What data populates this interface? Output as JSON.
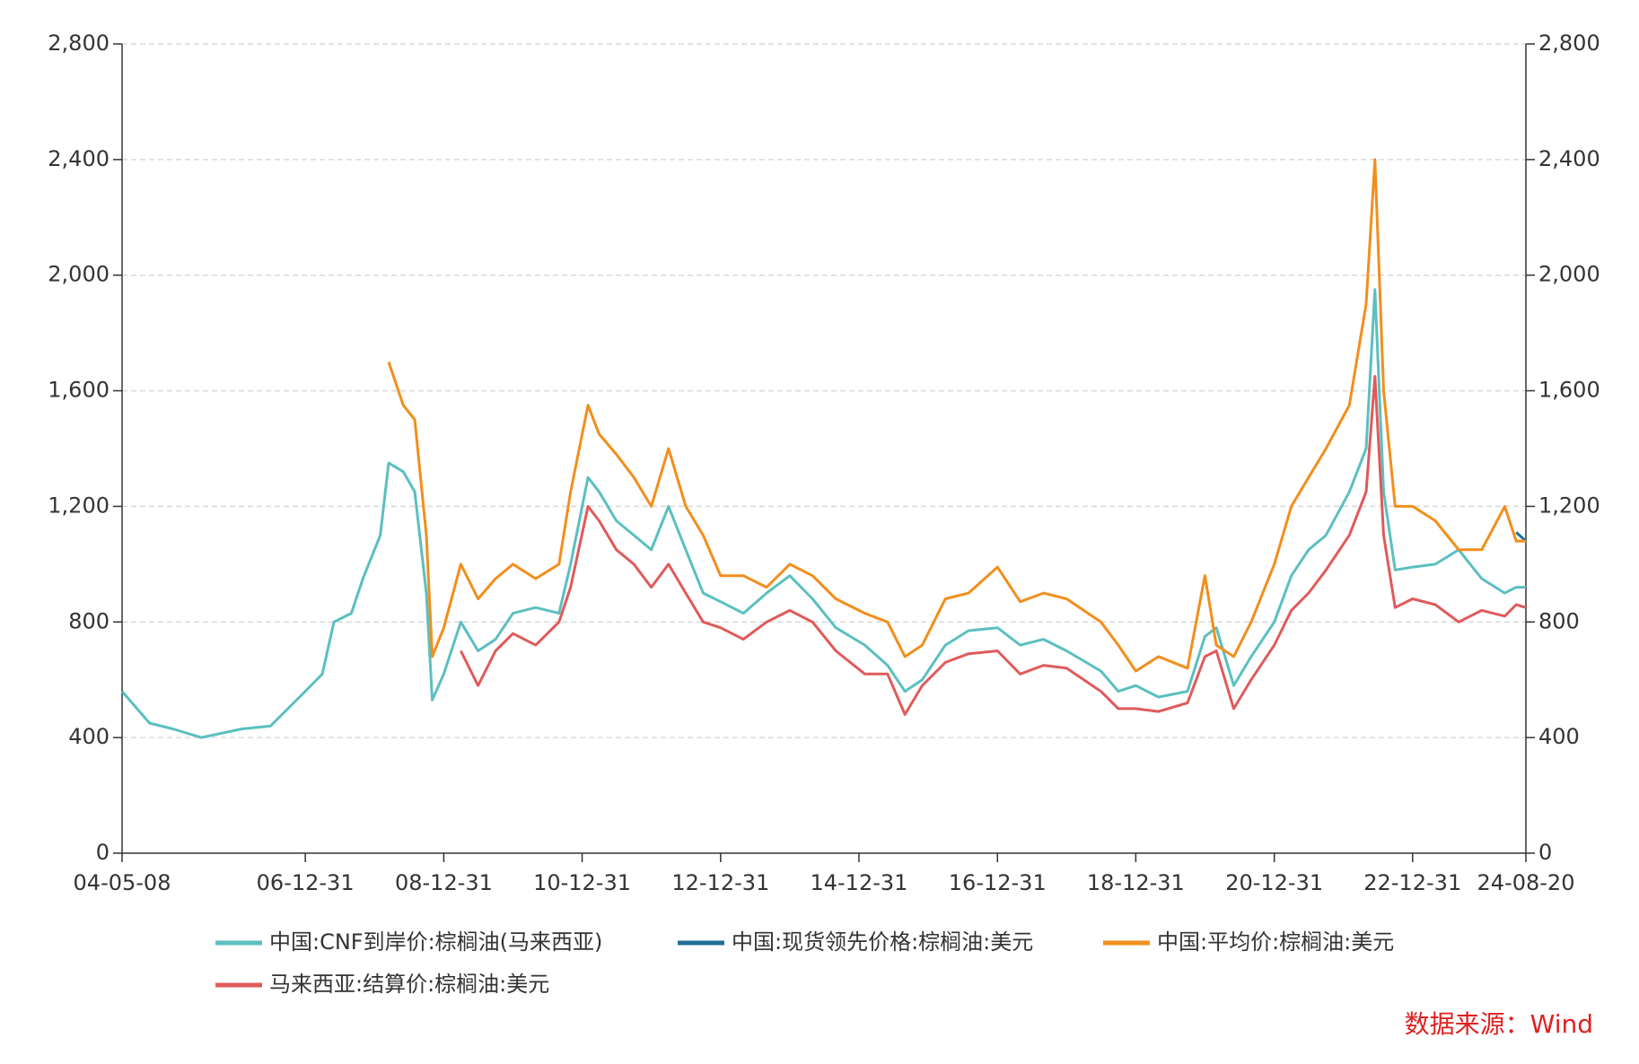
{
  "chart_data": {
    "type": "line",
    "x": [
      "04-05-08",
      "04-09-30",
      "05-01-31",
      "05-06-30",
      "06-01-31",
      "06-06-30",
      "06-09-30",
      "06-12-31",
      "07-03-31",
      "07-05-31",
      "07-08-31",
      "07-10-31",
      "08-01-31",
      "08-03-15",
      "08-05-31",
      "08-07-31",
      "08-09-30",
      "08-10-31",
      "08-12-31",
      "09-03-31",
      "09-06-30",
      "09-09-30",
      "09-12-31",
      "10-04-30",
      "10-08-31",
      "10-10-31",
      "11-01-31",
      "11-03-31",
      "11-06-30",
      "11-09-30",
      "11-12-31",
      "12-03-31",
      "12-06-30",
      "12-09-30",
      "12-12-31",
      "13-04-30",
      "13-08-31",
      "13-12-31",
      "14-04-30",
      "14-08-31",
      "15-01-31",
      "15-05-31",
      "15-08-31",
      "15-11-30",
      "16-03-31",
      "16-07-31",
      "16-12-31",
      "17-04-30",
      "17-08-31",
      "17-12-31",
      "18-06-30",
      "18-09-30",
      "18-12-31",
      "19-04-30",
      "19-09-30",
      "19-12-31",
      "20-02-29",
      "20-05-31",
      "20-08-31",
      "20-12-31",
      "21-03-31",
      "21-06-30",
      "21-09-30",
      "22-01-31",
      "22-04-30",
      "22-06-15",
      "22-07-31",
      "22-09-30",
      "22-12-31",
      "23-04-30",
      "23-08-31",
      "23-12-31",
      "24-04-30",
      "24-06-30",
      "24-08-20"
    ],
    "series": [
      {
        "name": "中国:CNF到岸价:棕榈油(马来西亚)",
        "color": "#5bbfc0",
        "values": [
          560,
          450,
          430,
          400,
          430,
          440,
          500,
          560,
          620,
          800,
          830,
          950,
          1100,
          1350,
          1320,
          1250,
          900,
          530,
          620,
          800,
          700,
          740,
          830,
          850,
          830,
          1000,
          1300,
          1250,
          1150,
          1100,
          1050,
          1200,
          1050,
          900,
          870,
          830,
          900,
          960,
          880,
          780,
          720,
          650,
          560,
          600,
          720,
          770,
          780,
          720,
          740,
          700,
          630,
          560,
          580,
          540,
          560,
          750,
          780,
          580,
          680,
          800,
          960,
          1050,
          1100,
          1250,
          1400,
          1950,
          1250,
          980,
          990,
          1000,
          1050,
          950,
          900,
          920,
          920
        ]
      },
      {
        "name": "中国:现货领先价格:棕榈油:美元",
        "color": "#1f6e96",
        "values": [
          null,
          null,
          null,
          null,
          null,
          null,
          null,
          null,
          null,
          null,
          null,
          null,
          null,
          null,
          null,
          null,
          null,
          null,
          null,
          null,
          null,
          null,
          null,
          null,
          null,
          null,
          null,
          null,
          null,
          null,
          null,
          null,
          null,
          null,
          null,
          null,
          null,
          null,
          null,
          null,
          null,
          null,
          null,
          null,
          null,
          null,
          null,
          null,
          null,
          null,
          null,
          null,
          null,
          null,
          null,
          null,
          null,
          null,
          null,
          null,
          null,
          null,
          null,
          null,
          null,
          null,
          null,
          null,
          null,
          null,
          null,
          null,
          null,
          1110,
          1080
        ]
      },
      {
        "name": "中国:平均价:棕榈油:美元",
        "color": "#f28e1c",
        "values": [
          null,
          null,
          null,
          null,
          null,
          null,
          null,
          null,
          null,
          null,
          null,
          null,
          null,
          1700,
          1550,
          1500,
          1100,
          680,
          780,
          1000,
          880,
          950,
          1000,
          950,
          1000,
          1250,
          1550,
          1450,
          1380,
          1300,
          1200,
          1400,
          1200,
          1100,
          960,
          960,
          920,
          1000,
          960,
          880,
          830,
          800,
          680,
          720,
          880,
          900,
          990,
          870,
          900,
          880,
          800,
          720,
          630,
          680,
          640,
          960,
          720,
          680,
          800,
          1000,
          1200,
          1300,
          1400,
          1550,
          1900,
          2400,
          1600,
          1200,
          1200,
          1150,
          1050,
          1050,
          1200,
          1080,
          1080
        ]
      },
      {
        "name": "马来西亚:结算价:棕榈油:美元",
        "color": "#e05a5a",
        "values": [
          null,
          null,
          null,
          null,
          null,
          null,
          null,
          null,
          null,
          null,
          null,
          null,
          null,
          null,
          null,
          null,
          null,
          null,
          null,
          700,
          580,
          700,
          760,
          720,
          800,
          920,
          1200,
          1150,
          1050,
          1000,
          920,
          1000,
          900,
          800,
          780,
          740,
          800,
          840,
          800,
          700,
          620,
          620,
          480,
          580,
          660,
          690,
          700,
          620,
          650,
          640,
          560,
          500,
          500,
          490,
          520,
          680,
          700,
          500,
          600,
          720,
          840,
          900,
          980,
          1100,
          1250,
          1650,
          1100,
          850,
          880,
          860,
          800,
          840,
          820,
          860,
          850
        ]
      }
    ],
    "xlim": [
      "04-05-08",
      "24-08-20"
    ],
    "xticks": [
      "04-05-08",
      "06-12-31",
      "08-12-31",
      "10-12-31",
      "12-12-31",
      "14-12-31",
      "16-12-31",
      "18-12-31",
      "20-12-31",
      "22-12-31",
      "24-08-20"
    ],
    "ylim": [
      0,
      2800
    ],
    "yticks": [
      0,
      400,
      800,
      {
        "value": 1200,
        "label": "1,200"
      },
      {
        "value": 1600,
        "label": "1,600"
      },
      {
        "value": 2000,
        "label": "2,000"
      },
      {
        "value": 2400,
        "label": "2,400"
      },
      {
        "value": 2800,
        "label": "2,800"
      }
    ],
    "y2lim": [
      0,
      2800
    ],
    "y2ticks": [
      0,
      400,
      800,
      {
        "value": 1200,
        "label": "1,200"
      },
      {
        "value": 1600,
        "label": "1,600"
      },
      {
        "value": 2000,
        "label": "2,000"
      },
      {
        "value": 2400,
        "label": "2,400"
      },
      {
        "value": 2800,
        "label": "2,800"
      }
    ],
    "grid": true,
    "legend": "bottom",
    "source": "数据来源：Wind"
  }
}
